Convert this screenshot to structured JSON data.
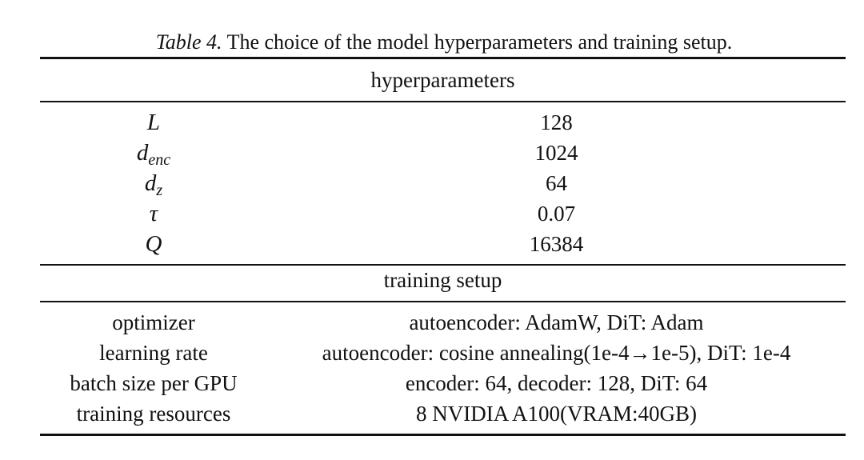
{
  "caption": {
    "label": "Table 4.",
    "text": "The choice of the model hyperparameters and training setup."
  },
  "sections": [
    {
      "title": "hyperparameters",
      "rows": [
        {
          "symbol": "L",
          "value": "128"
        },
        {
          "symbol": "d",
          "sub": "enc",
          "value": "1024"
        },
        {
          "symbol": "d",
          "sub": "z",
          "value": "64"
        },
        {
          "symbol": "τ",
          "value": "0.07"
        },
        {
          "symbol": "Q",
          "value": "16384"
        }
      ]
    },
    {
      "title": "training setup",
      "rows": [
        {
          "name": "optimizer",
          "value": "autoencoder: AdamW, DiT: Adam"
        },
        {
          "name": "learning rate",
          "value": "autoencoder: cosine annealing(1e-4→1e-5), DiT: 1e-4"
        },
        {
          "name": "batch size per GPU",
          "value": "encoder: 64, decoder: 128, DiT: 64"
        },
        {
          "name": "training resources",
          "value": "8 NVIDIA A100(VRAM:40GB)"
        }
      ]
    }
  ]
}
